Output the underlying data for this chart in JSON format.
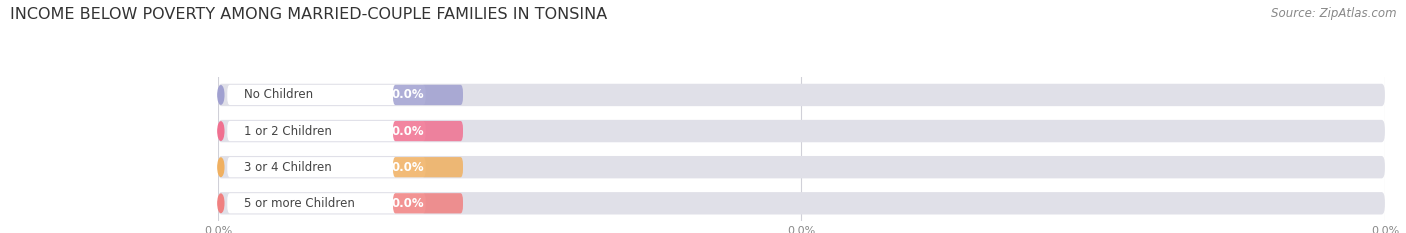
{
  "title": "INCOME BELOW POVERTY AMONG MARRIED-COUPLE FAMILIES IN TONSINA",
  "source": "Source: ZipAtlas.com",
  "categories": [
    "No Children",
    "1 or 2 Children",
    "3 or 4 Children",
    "5 or more Children"
  ],
  "values": [
    0.0,
    0.0,
    0.0,
    0.0
  ],
  "bar_colors": [
    "#a0a0d0",
    "#f07090",
    "#f0b060",
    "#f08080"
  ],
  "bar_bg_color": "#e0e0e8",
  "background_color": "#ffffff",
  "title_fontsize": 11.5,
  "source_fontsize": 8.5,
  "grid_color": "#d0d0d8",
  "tick_label_color": "#888888"
}
